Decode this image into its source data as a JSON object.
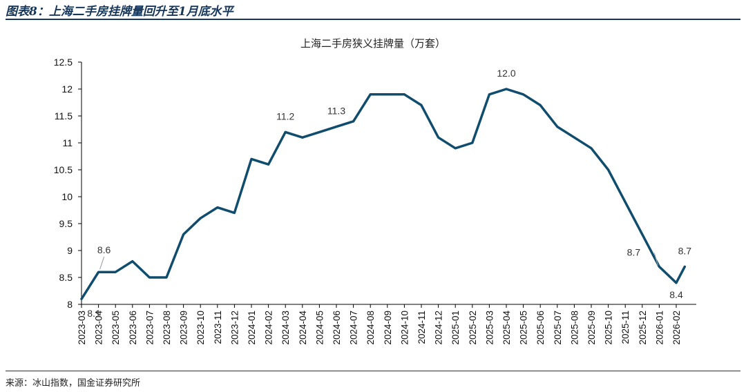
{
  "figure": {
    "title": "图表8：上海二手房挂牌量回升至1月底水平",
    "source": "来源：冰山指数，国金证券研究所"
  },
  "chart_data": {
    "type": "line",
    "title": "上海二手房狭义挂牌量（万套）",
    "xlabel": "",
    "ylabel": "",
    "ylim": [
      8,
      12.5
    ],
    "yticks": [
      "8",
      "8.5",
      "9",
      "9.5",
      "10",
      "10.5",
      "11",
      "11.5",
      "12",
      "12.5"
    ],
    "grid": false,
    "line_color": "#0f4c6e",
    "categories": [
      "2023-03",
      "2023-04",
      "2023-05",
      "2023-06",
      "2023-07",
      "2023-08",
      "2023-09",
      "2023-10",
      "2023-11",
      "2023-12",
      "2024-01",
      "2024-02",
      "2024-03",
      "2024-04",
      "2024-05",
      "2024-06",
      "2024-07",
      "2024-08",
      "2024-09",
      "2024-10",
      "2024-11",
      "2024-12",
      "2025-01",
      "2025-02",
      "2025-03",
      "2025-04",
      "2025-05",
      "2025-06",
      "2025-07",
      "2025-08",
      "2025-09",
      "2025-10",
      "2025-11",
      "2025-12",
      "2026-01",
      "2026-02"
    ],
    "x": [
      0,
      1,
      2,
      3,
      4,
      5,
      6,
      7,
      8,
      9,
      10,
      11,
      12,
      13,
      14,
      15,
      16,
      17,
      18,
      19,
      20,
      21,
      22,
      23,
      24,
      25,
      26,
      27,
      28,
      29,
      30,
      31,
      32,
      33,
      34,
      35,
      35.5
    ],
    "values": [
      8.1,
      8.6,
      8.6,
      8.8,
      8.5,
      8.5,
      9.3,
      9.6,
      9.8,
      9.7,
      10.7,
      10.6,
      11.2,
      11.1,
      11.2,
      11.3,
      11.4,
      11.9,
      11.9,
      11.9,
      11.7,
      11.1,
      10.9,
      11.0,
      11.9,
      12.0,
      11.9,
      11.7,
      11.3,
      11.1,
      10.9,
      10.5,
      9.9,
      9.3,
      8.7,
      8.4,
      8.7
    ],
    "annotations": [
      {
        "text": "8.1",
        "x": 0,
        "y": 8.1,
        "pos": "below"
      },
      {
        "text": "8.6",
        "x": 1,
        "y": 8.6,
        "pos": "above"
      },
      {
        "text": "11.2",
        "x": 12,
        "y": 11.2,
        "pos": "above"
      },
      {
        "text": "11.3",
        "x": 15,
        "y": 11.3,
        "pos": "above"
      },
      {
        "text": "12.0",
        "x": 25,
        "y": 12.0,
        "pos": "above"
      },
      {
        "text": "8.7",
        "x": 34,
        "y": 8.7,
        "pos": "left"
      },
      {
        "text": "8.4",
        "x": 35,
        "y": 8.4,
        "pos": "below"
      },
      {
        "text": "8.7",
        "x": 35.5,
        "y": 8.7,
        "pos": "above"
      }
    ]
  }
}
